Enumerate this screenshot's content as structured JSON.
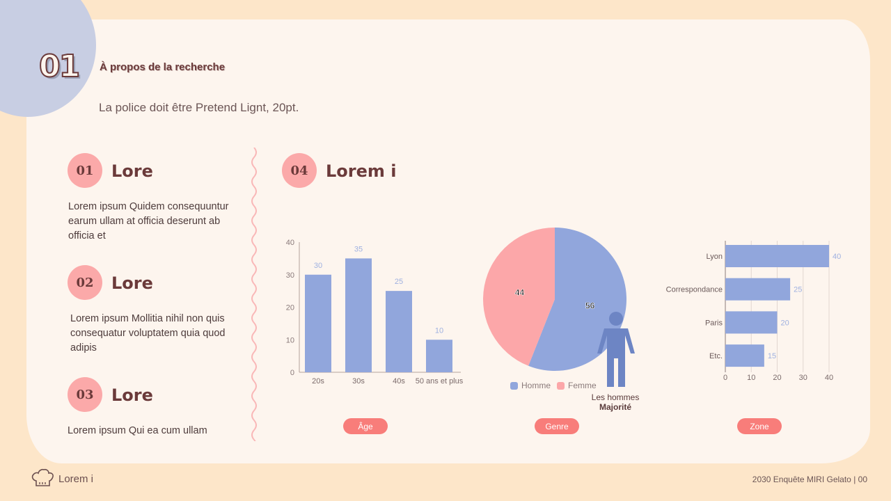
{
  "header": {
    "number": "01",
    "title": "À propos de la recherche",
    "subtitle": "La police doit être Pretend Lignt, 20pt."
  },
  "sections": [
    {
      "number": "01",
      "title": "Lore",
      "text": "Lorem ipsum Quidem consequuntur earum ullam at officia deserunt ab officia et"
    },
    {
      "number": "02",
      "title": "Lore",
      "text": "Lorem ipsum Mollitia nihil non quis consequatur voluptatem quia quod adipis"
    },
    {
      "number": "03",
      "title": "Lore",
      "text": "Lorem ipsum Qui ea cum ullam"
    }
  ],
  "main": {
    "number": "04",
    "title": "Lorem i"
  },
  "colors": {
    "bar": "#91a6dc",
    "pink": "#fca7a9",
    "accent": "#f87d7a",
    "label": "#9fb1e0"
  },
  "chart_data": [
    {
      "type": "bar",
      "categories": [
        "20s",
        "30s",
        "40s",
        "50 ans et plus"
      ],
      "values": [
        30,
        35,
        25,
        10
      ],
      "ylim": [
        0,
        40
      ],
      "yticks": [
        0,
        10,
        20,
        30,
        40
      ],
      "button": "Âge"
    },
    {
      "type": "pie",
      "categories": [
        "Homme",
        "Femme"
      ],
      "values": [
        56,
        44
      ],
      "legend": "bottom",
      "button": "Genre",
      "annotation": [
        "Les hommes",
        "Majorité"
      ]
    },
    {
      "type": "bar",
      "orientation": "horizontal",
      "categories": [
        "Lyon",
        "Correspondance",
        "Paris",
        "Etc."
      ],
      "values": [
        40,
        25,
        20,
        15
      ],
      "xlim": [
        0,
        40
      ],
      "xticks": [
        0,
        10,
        20,
        30,
        40
      ],
      "grid": true,
      "button": "Zone"
    }
  ],
  "footer": {
    "brand": "Lorem i",
    "right": "2030 Enquête MIRI Gelato | 00"
  }
}
